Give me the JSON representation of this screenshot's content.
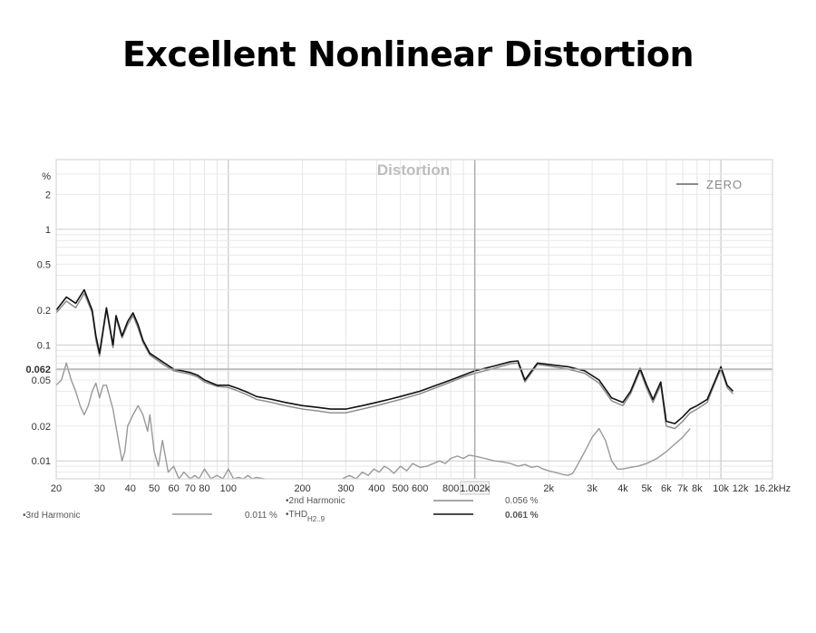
{
  "page": {
    "title": "Excellent Nonlinear Distortion"
  },
  "chart_data": {
    "type": "line",
    "title": "Distortion",
    "xscale": "log",
    "yscale": "log",
    "xlim": [
      20,
      16200
    ],
    "ylim": [
      0.007,
      4
    ],
    "y_unit": "%",
    "grid": true,
    "x_ticks": [
      {
        "value": 20,
        "label": "20"
      },
      {
        "value": 30,
        "label": "30"
      },
      {
        "value": 40,
        "label": "40"
      },
      {
        "value": 50,
        "label": "50"
      },
      {
        "value": 60,
        "label": "60"
      },
      {
        "value": 70,
        "label": "70"
      },
      {
        "value": 80,
        "label": "80"
      },
      {
        "value": 100,
        "label": "100"
      },
      {
        "value": 200,
        "label": "200"
      },
      {
        "value": 300,
        "label": "300"
      },
      {
        "value": 400,
        "label": "400"
      },
      {
        "value": 500,
        "label": "500"
      },
      {
        "value": 600,
        "label": "600"
      },
      {
        "value": 800,
        "label": "800"
      },
      {
        "value": 1002,
        "label": "1.002k"
      },
      {
        "value": 2000,
        "label": "2k"
      },
      {
        "value": 3000,
        "label": "3k"
      },
      {
        "value": 4000,
        "label": "4k"
      },
      {
        "value": 5000,
        "label": "5k"
      },
      {
        "value": 6000,
        "label": "6k"
      },
      {
        "value": 7000,
        "label": "7k"
      },
      {
        "value": 8000,
        "label": "8k"
      },
      {
        "value": 10000,
        "label": "10k"
      },
      {
        "value": 12000,
        "label": "12k"
      },
      {
        "value": 16200,
        "label": "16.2kHz"
      }
    ],
    "y_ticks": [
      {
        "value": 2,
        "label": "2"
      },
      {
        "value": 1,
        "label": "1"
      },
      {
        "value": 0.5,
        "label": "0.5"
      },
      {
        "value": 0.2,
        "label": "0.2"
      },
      {
        "value": 0.1,
        "label": "0.1"
      },
      {
        "value": 0.062,
        "label": "0.062"
      },
      {
        "value": 0.05,
        "label": "0.05"
      },
      {
        "value": 0.02,
        "label": "0.02"
      },
      {
        "value": 0.01,
        "label": "0.01"
      }
    ],
    "cursor": {
      "x": 1002,
      "y": 0.062
    },
    "legend_placement": "top-right",
    "top_legend": {
      "name": "ZERO",
      "color": "#8a8a8a"
    },
    "series": [
      {
        "name": "THD",
        "legend_label": "THD",
        "legend_sub": "H2..9",
        "value_label": "0.061 %",
        "color": "#111111",
        "x": [
          20,
          22,
          24,
          26,
          28,
          29,
          30,
          32,
          34,
          35,
          37,
          39,
          41,
          43,
          45,
          48,
          51,
          55,
          60,
          65,
          70,
          75,
          80,
          90,
          100,
          110,
          120,
          130,
          150,
          170,
          200,
          230,
          260,
          300,
          350,
          400,
          450,
          500,
          600,
          700,
          800,
          900,
          1002,
          1200,
          1400,
          1500,
          1600,
          1800,
          2000,
          2400,
          2800,
          3200,
          3600,
          4000,
          4300,
          4700,
          5000,
          5300,
          5700,
          6000,
          6500,
          7000,
          7500,
          8000,
          8800,
          9500,
          10000,
          10600,
          11200
        ],
        "values": [
          0.2,
          0.26,
          0.23,
          0.3,
          0.2,
          0.12,
          0.085,
          0.21,
          0.1,
          0.18,
          0.12,
          0.16,
          0.19,
          0.15,
          0.11,
          0.085,
          0.078,
          0.07,
          0.062,
          0.06,
          0.058,
          0.055,
          0.05,
          0.045,
          0.045,
          0.042,
          0.039,
          0.036,
          0.034,
          0.032,
          0.03,
          0.029,
          0.028,
          0.028,
          0.03,
          0.032,
          0.034,
          0.036,
          0.04,
          0.045,
          0.05,
          0.055,
          0.06,
          0.066,
          0.072,
          0.073,
          0.05,
          0.07,
          0.068,
          0.065,
          0.06,
          0.05,
          0.035,
          0.032,
          0.04,
          0.063,
          0.045,
          0.034,
          0.048,
          0.022,
          0.021,
          0.024,
          0.028,
          0.03,
          0.034,
          0.05,
          0.065,
          0.045,
          0.04
        ]
      },
      {
        "name": "2nd Harmonic",
        "legend_label": "2nd Harmonic",
        "value_label": "0.056 %",
        "color": "#888888",
        "x": [
          20,
          22,
          24,
          26,
          28,
          29,
          30,
          32,
          34,
          35,
          37,
          39,
          41,
          43,
          45,
          48,
          51,
          55,
          60,
          65,
          70,
          75,
          80,
          90,
          100,
          110,
          120,
          130,
          150,
          170,
          200,
          230,
          260,
          300,
          350,
          400,
          450,
          500,
          600,
          700,
          800,
          900,
          1002,
          1200,
          1400,
          1500,
          1600,
          1800,
          2000,
          2400,
          2800,
          3200,
          3600,
          4000,
          4300,
          4700,
          5000,
          5300,
          5700,
          6000,
          6500,
          7000,
          7500,
          8000,
          8800,
          9500,
          10000,
          10600,
          11200
        ],
        "values": [
          0.19,
          0.24,
          0.21,
          0.28,
          0.19,
          0.11,
          0.08,
          0.2,
          0.095,
          0.17,
          0.115,
          0.15,
          0.18,
          0.14,
          0.105,
          0.082,
          0.075,
          0.067,
          0.06,
          0.058,
          0.056,
          0.053,
          0.048,
          0.044,
          0.043,
          0.04,
          0.037,
          0.034,
          0.032,
          0.03,
          0.028,
          0.027,
          0.026,
          0.026,
          0.028,
          0.03,
          0.032,
          0.034,
          0.038,
          0.043,
          0.048,
          0.053,
          0.057,
          0.063,
          0.069,
          0.07,
          0.048,
          0.068,
          0.066,
          0.062,
          0.057,
          0.047,
          0.033,
          0.03,
          0.038,
          0.06,
          0.042,
          0.032,
          0.045,
          0.02,
          0.019,
          0.022,
          0.026,
          0.028,
          0.032,
          0.048,
          0.062,
          0.043,
          0.038
        ]
      },
      {
        "name": "3rd Harmonic",
        "legend_label": "3rd Harmonic",
        "value_label": "0.011 %",
        "color": "#999999",
        "x": [
          20,
          21,
          22,
          23,
          24,
          25,
          26,
          27,
          28,
          29,
          30,
          31,
          32,
          34,
          36,
          37,
          38,
          39,
          41,
          43,
          45,
          47,
          48,
          50,
          52,
          54,
          57,
          60,
          63,
          66,
          70,
          73,
          76,
          80,
          85,
          90,
          95,
          100,
          105,
          110,
          115,
          120,
          125,
          130,
          140
        ],
        "values": [
          0.045,
          0.05,
          0.07,
          0.05,
          0.04,
          0.03,
          0.025,
          0.03,
          0.04,
          0.047,
          0.035,
          0.045,
          0.045,
          0.028,
          0.014,
          0.01,
          0.012,
          0.02,
          0.025,
          0.03,
          0.025,
          0.018,
          0.025,
          0.012,
          0.009,
          0.015,
          0.008,
          0.009,
          0.007,
          0.008,
          0.007,
          0.0075,
          0.007,
          0.0085,
          0.007,
          0.0075,
          0.007,
          0.0085,
          0.007,
          0.0072,
          0.007,
          0.0075,
          0.007,
          0.0072,
          0.007
        ]
      },
      {
        "name": "3rd Harmonic (high band)",
        "legend_label": "",
        "color": "#999999",
        "x": [
          290,
          310,
          330,
          350,
          370,
          390,
          410,
          430,
          450,
          470,
          500,
          530,
          560,
          600,
          640,
          680,
          720,
          760,
          800,
          850,
          900,
          950,
          1002,
          1100,
          1200,
          1300,
          1400,
          1500,
          1600,
          1700,
          1800,
          1900,
          2000,
          2100,
          2200,
          2300,
          2400,
          2500,
          2600,
          2800,
          3000,
          3200,
          3400,
          3600,
          3800,
          4000,
          4300,
          4600,
          5000,
          5500,
          6000,
          6500,
          7000,
          7500
        ],
        "values": [
          0.007,
          0.0075,
          0.007,
          0.008,
          0.0075,
          0.0085,
          0.008,
          0.009,
          0.0085,
          0.0078,
          0.009,
          0.0082,
          0.0095,
          0.0088,
          0.009,
          0.0095,
          0.01,
          0.0095,
          0.0105,
          0.011,
          0.0105,
          0.0112,
          0.011,
          0.0105,
          0.01,
          0.0098,
          0.0095,
          0.009,
          0.0093,
          0.0088,
          0.009,
          0.0085,
          0.0082,
          0.008,
          0.0078,
          0.0076,
          0.0075,
          0.0078,
          0.009,
          0.012,
          0.016,
          0.019,
          0.015,
          0.01,
          0.0085,
          0.0085,
          0.0088,
          0.009,
          0.0095,
          0.0105,
          0.012,
          0.014,
          0.016,
          0.019
        ]
      }
    ]
  }
}
